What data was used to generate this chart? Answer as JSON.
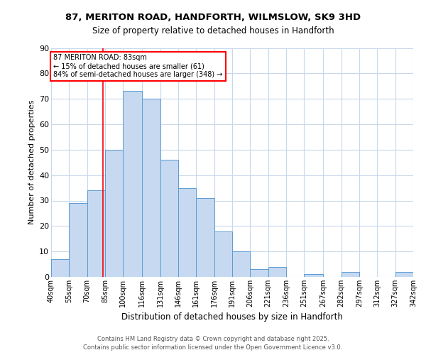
{
  "title1": "87, MERITON ROAD, HANDFORTH, WILMSLOW, SK9 3HD",
  "title2": "Size of property relative to detached houses in Handforth",
  "xlabel": "Distribution of detached houses by size in Handforth",
  "ylabel": "Number of detached properties",
  "bin_labels": [
    "40sqm",
    "55sqm",
    "70sqm",
    "85sqm",
    "100sqm",
    "116sqm",
    "131sqm",
    "146sqm",
    "161sqm",
    "176sqm",
    "191sqm",
    "206sqm",
    "221sqm",
    "236sqm",
    "251sqm",
    "267sqm",
    "282sqm",
    "297sqm",
    "312sqm",
    "327sqm",
    "342sqm"
  ],
  "bar_values": [
    7,
    29,
    34,
    50,
    73,
    70,
    46,
    35,
    31,
    18,
    10,
    3,
    4,
    0,
    1,
    0,
    2,
    0,
    0,
    2
  ],
  "bar_color": "#c6d9f0",
  "bar_edge_color": "#5b9bd5",
  "property_line_x": 83,
  "property_line_label": "87 MERITON ROAD: 83sqm",
  "annotation_line1": "← 15% of detached houses are smaller (61)",
  "annotation_line2": "84% of semi-detached houses are larger (348) →",
  "annotation_box_edge": "#cc0000",
  "ylim": [
    0,
    90
  ],
  "yticks": [
    0,
    10,
    20,
    30,
    40,
    50,
    60,
    70,
    80,
    90
  ],
  "footer1": "Contains HM Land Registry data © Crown copyright and database right 2025.",
  "footer2": "Contains public sector information licensed under the Open Government Licence v3.0.",
  "grid_color": "#c8d8ec"
}
